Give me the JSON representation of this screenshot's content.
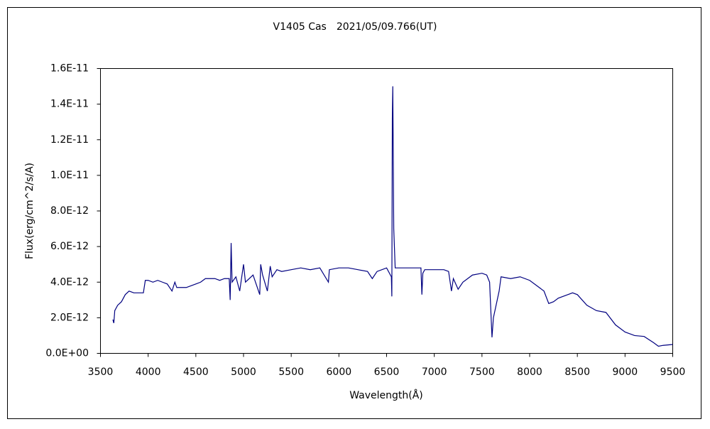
{
  "chart_data": {
    "type": "line",
    "title": "V1405 Cas　2021/05/09.766(UT)",
    "x_label": "Wavelength(Å)",
    "y_label": "Flux(erg/cm^2/s/A)",
    "xlim": [
      3500,
      9500
    ],
    "xticks": [
      3500,
      4000,
      4500,
      5000,
      5500,
      6000,
      6500,
      7000,
      7500,
      8000,
      8500,
      9000,
      9500
    ],
    "ylim": [
      0,
      1.6e-11
    ],
    "yticks": [
      {
        "value": 0,
        "label": "0.0E+00"
      },
      {
        "value": 2e-12,
        "label": "2.0E-12"
      },
      {
        "value": 4e-12,
        "label": "4.0E-12"
      },
      {
        "value": 6e-12,
        "label": "6.0E-12"
      },
      {
        "value": 8e-12,
        "label": "8.0E-12"
      },
      {
        "value": 1e-11,
        "label": "1.0E-11"
      },
      {
        "value": 1.2e-11,
        "label": "1.2E-11"
      },
      {
        "value": 1.4e-11,
        "label": "1.4E-11"
      },
      {
        "value": 1.6e-11,
        "label": "1.6E-11"
      }
    ],
    "series": [
      {
        "color": "#000080",
        "x": [
          3630,
          3640,
          3650,
          3680,
          3720,
          3760,
          3800,
          3850,
          3900,
          3950,
          3970,
          4000,
          4050,
          4100,
          4150,
          4200,
          4250,
          4280,
          4300,
          4350,
          4400,
          4450,
          4500,
          4550,
          4600,
          4650,
          4700,
          4750,
          4800,
          4850,
          4860,
          4870,
          4880,
          4920,
          4960,
          5000,
          5020,
          5100,
          5170,
          5180,
          5200,
          5250,
          5280,
          5300,
          5350,
          5400,
          5500,
          5600,
          5700,
          5800,
          5890,
          5900,
          6000,
          6100,
          6200,
          6300,
          6350,
          6400,
          6500,
          6550,
          6555,
          6560,
          6565,
          6575,
          6590,
          6700,
          6800,
          6860,
          6870,
          6880,
          6900,
          7000,
          7100,
          7150,
          7180,
          7200,
          7250,
          7300,
          7400,
          7500,
          7550,
          7580,
          7605,
          7620,
          7680,
          7700,
          7800,
          7900,
          8000,
          8100,
          8150,
          8200,
          8250,
          8300,
          8400,
          8450,
          8500,
          8600,
          8700,
          8800,
          8900,
          9000,
          9100,
          9200,
          9300,
          9350,
          9400,
          9500
        ],
        "values": [
          1.9e-12,
          1.7e-12,
          2.4e-12,
          2.7e-12,
          2.9e-12,
          3.3e-12,
          3.5e-12,
          3.4e-12,
          3.4e-12,
          3.4e-12,
          4.1e-12,
          4.1e-12,
          4e-12,
          4.1e-12,
          4e-12,
          3.9e-12,
          3.5e-12,
          4e-12,
          3.7e-12,
          3.7e-12,
          3.7e-12,
          3.8e-12,
          3.9e-12,
          4e-12,
          4.2e-12,
          4.2e-12,
          4.2e-12,
          4.1e-12,
          4.2e-12,
          4.2e-12,
          3e-12,
          6.2e-12,
          4e-12,
          4.3e-12,
          3.5e-12,
          5e-12,
          4e-12,
          4.4e-12,
          3.3e-12,
          5e-12,
          4.4e-12,
          3.5e-12,
          4.9e-12,
          4.3e-12,
          4.7e-12,
          4.6e-12,
          4.7e-12,
          4.8e-12,
          4.7e-12,
          4.8e-12,
          4e-12,
          4.7e-12,
          4.8e-12,
          4.8e-12,
          4.7e-12,
          4.6e-12,
          4.2e-12,
          4.6e-12,
          4.8e-12,
          4.3e-12,
          3.2e-12,
          1.32e-11,
          1.5e-11,
          7e-12,
          4.8e-12,
          4.8e-12,
          4.8e-12,
          4.8e-12,
          3.3e-12,
          4.5e-12,
          4.7e-12,
          4.7e-12,
          4.7e-12,
          4.6e-12,
          3.5e-12,
          4.2e-12,
          3.6e-12,
          4e-12,
          4.4e-12,
          4.5e-12,
          4.4e-12,
          4e-12,
          9e-13,
          2e-12,
          3.5e-12,
          4.3e-12,
          4.2e-12,
          4.3e-12,
          4.1e-12,
          3.7e-12,
          3.5e-12,
          2.8e-12,
          2.9e-12,
          3.1e-12,
          3.3e-12,
          3.4e-12,
          3.3e-12,
          2.7e-12,
          2.4e-12,
          2.3e-12,
          1.6e-12,
          1.2e-12,
          1e-12,
          9.5e-13,
          6e-13,
          4e-13,
          4.5e-13,
          5e-13
        ]
      }
    ]
  }
}
